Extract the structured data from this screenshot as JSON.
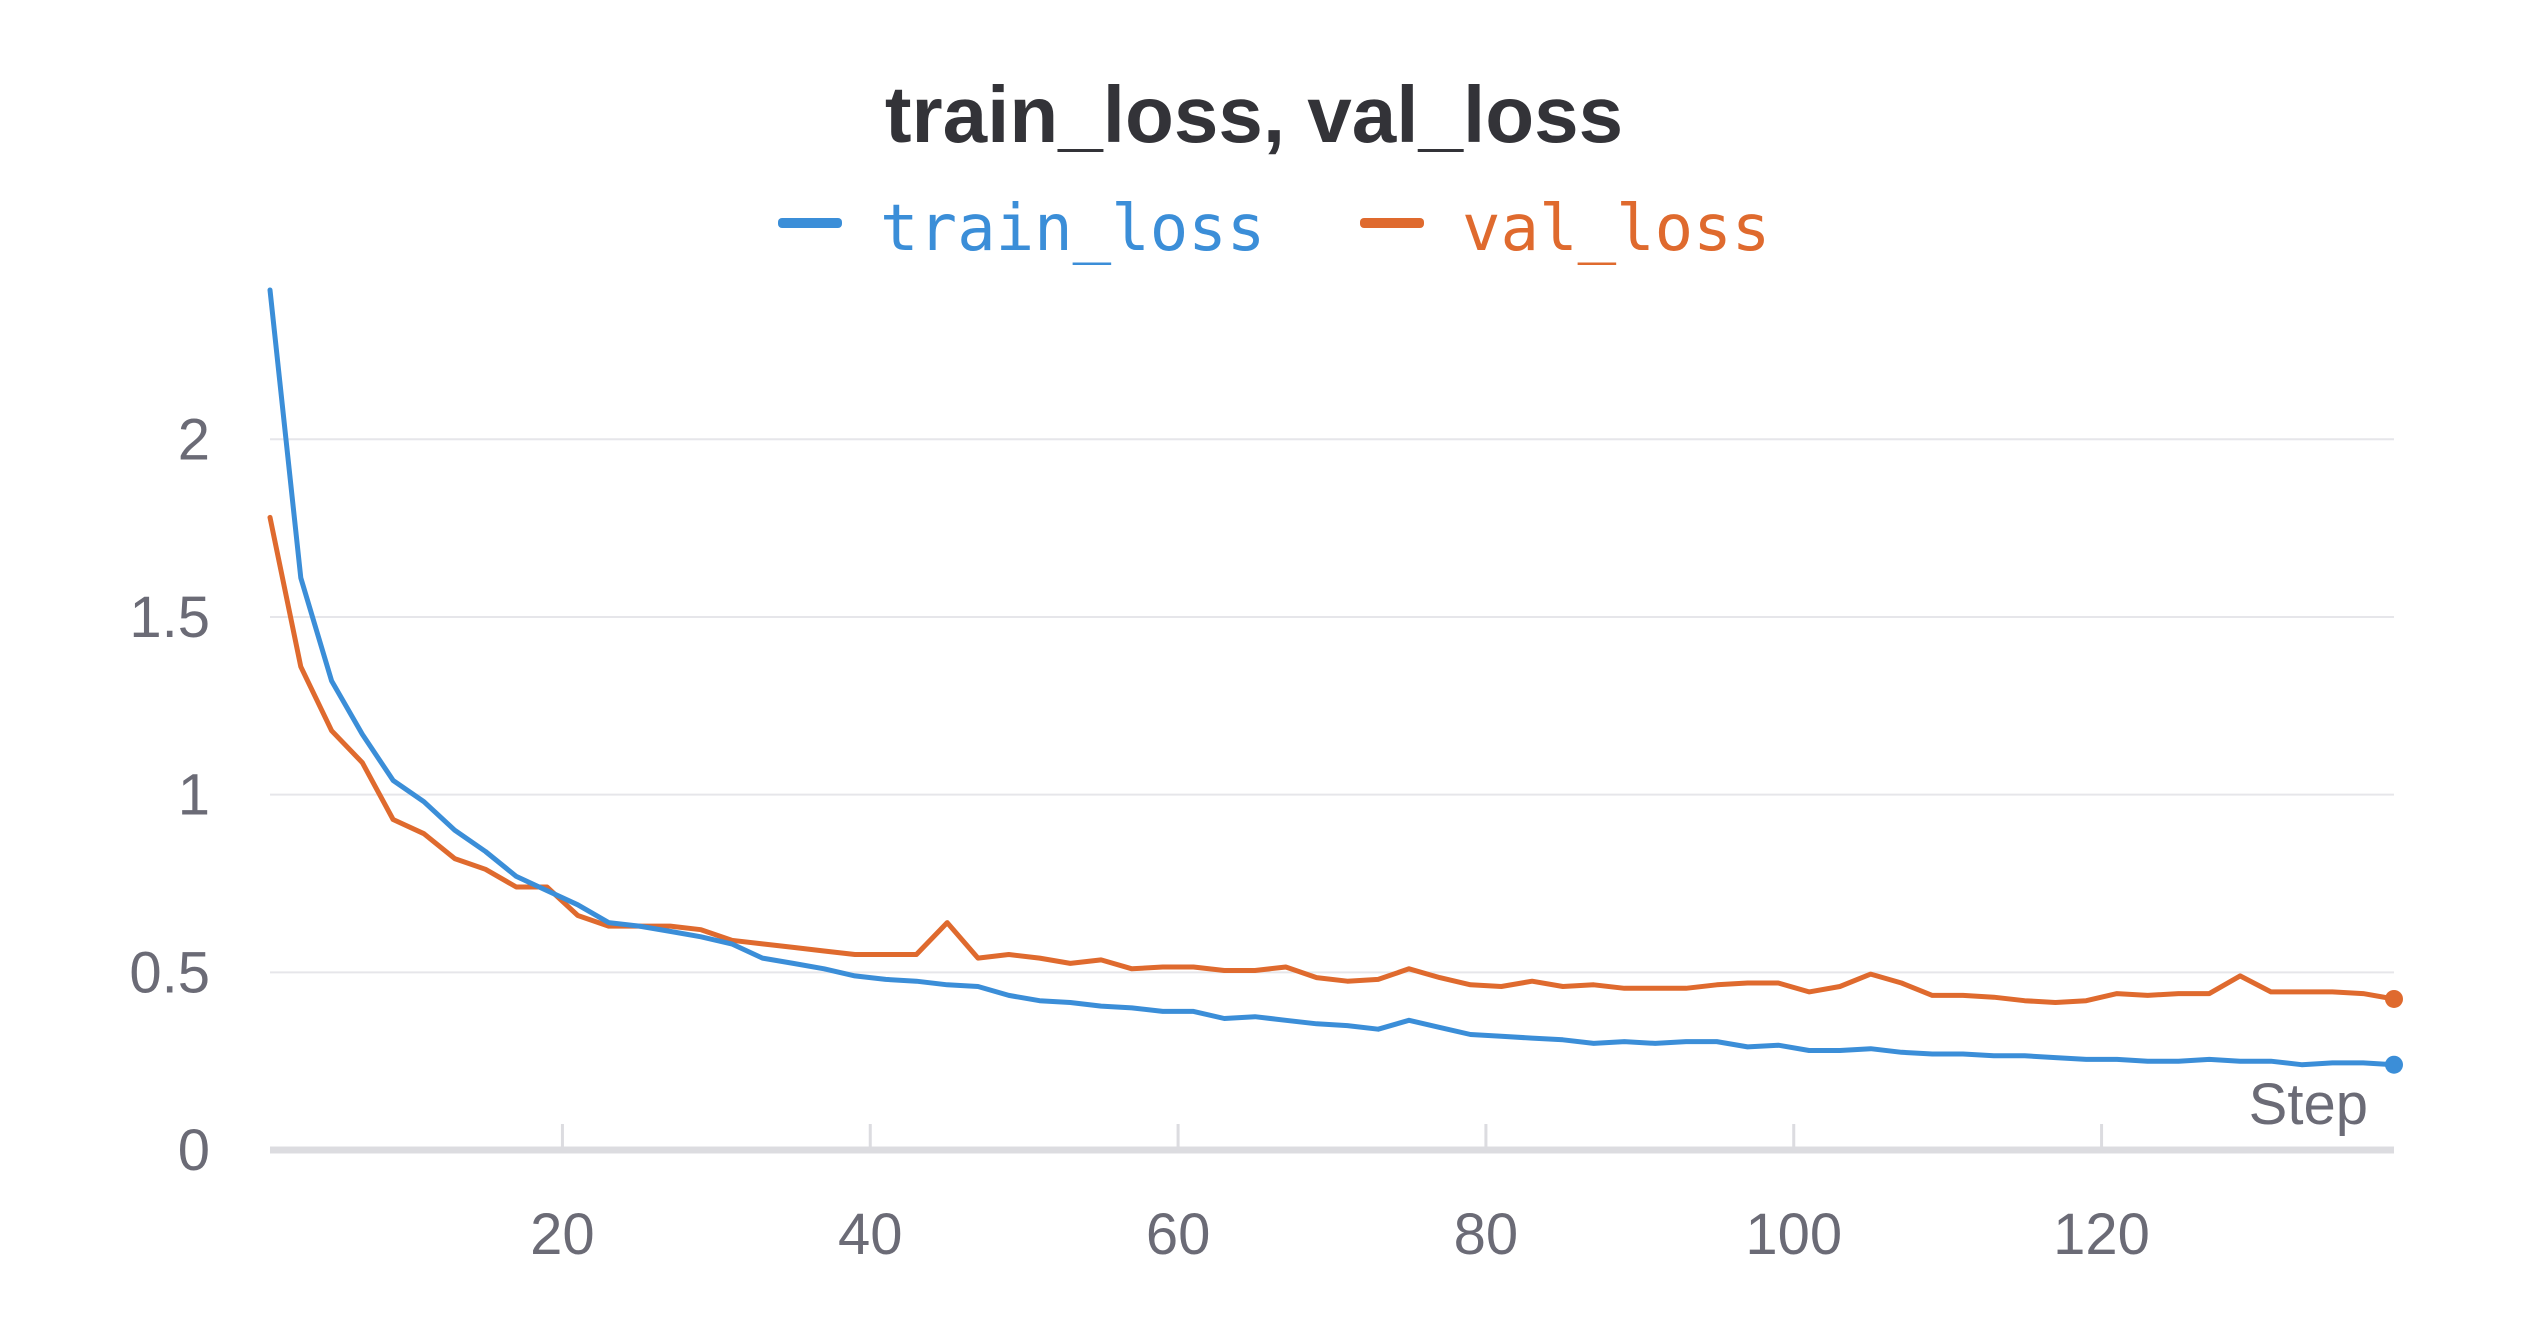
{
  "chart_data": {
    "type": "line",
    "title": "train_loss, val_loss",
    "xlabel": "Step",
    "ylabel": "",
    "xlim": [
      1,
      139
    ],
    "ylim": [
      0,
      2.42
    ],
    "xticks": [
      20,
      40,
      60,
      80,
      100,
      120
    ],
    "yticks": [
      0,
      0.5,
      1,
      1.5,
      2
    ],
    "ytick_labels": [
      "0",
      "0.5",
      "1",
      "1.5",
      "2"
    ],
    "grid": true,
    "legend_position": "top-center",
    "colors": {
      "train_loss": "#3b8ed8",
      "val_loss": "#df6a2e"
    },
    "x": [
      1,
      3,
      5,
      7,
      9,
      11,
      13,
      15,
      17,
      19,
      21,
      23,
      25,
      27,
      29,
      31,
      33,
      35,
      37,
      39,
      41,
      43,
      45,
      47,
      49,
      51,
      53,
      55,
      57,
      59,
      61,
      63,
      65,
      67,
      69,
      71,
      73,
      75,
      77,
      79,
      81,
      83,
      85,
      87,
      89,
      91,
      93,
      95,
      97,
      99,
      101,
      103,
      105,
      107,
      109,
      111,
      113,
      115,
      117,
      119,
      121,
      123,
      125,
      127,
      129,
      131,
      133,
      135,
      137,
      139
    ],
    "series": [
      {
        "name": "train_loss",
        "values": [
          2.42,
          1.61,
          1.32,
          1.17,
          1.04,
          0.98,
          0.9,
          0.84,
          0.77,
          0.73,
          0.69,
          0.64,
          0.63,
          0.615,
          0.6,
          0.58,
          0.54,
          0.525,
          0.51,
          0.49,
          0.48,
          0.475,
          0.465,
          0.46,
          0.435,
          0.42,
          0.415,
          0.405,
          0.4,
          0.39,
          0.39,
          0.37,
          0.375,
          0.365,
          0.355,
          0.35,
          0.34,
          0.365,
          0.345,
          0.325,
          0.32,
          0.315,
          0.31,
          0.3,
          0.305,
          0.3,
          0.305,
          0.305,
          0.29,
          0.295,
          0.28,
          0.28,
          0.285,
          0.275,
          0.27,
          0.27,
          0.265,
          0.265,
          0.26,
          0.255,
          0.255,
          0.25,
          0.25,
          0.255,
          0.25,
          0.25,
          0.24,
          0.245,
          0.245,
          0.24
        ]
      },
      {
        "name": "val_loss",
        "values": [
          1.78,
          1.36,
          1.18,
          1.09,
          0.93,
          0.89,
          0.82,
          0.79,
          0.74,
          0.74,
          0.66,
          0.63,
          0.63,
          0.63,
          0.62,
          0.59,
          0.58,
          0.57,
          0.56,
          0.55,
          0.55,
          0.55,
          0.64,
          0.54,
          0.55,
          0.54,
          0.525,
          0.535,
          0.51,
          0.515,
          0.515,
          0.505,
          0.505,
          0.515,
          0.485,
          0.475,
          0.48,
          0.51,
          0.485,
          0.465,
          0.46,
          0.475,
          0.46,
          0.465,
          0.455,
          0.455,
          0.455,
          0.465,
          0.47,
          0.47,
          0.445,
          0.46,
          0.495,
          0.47,
          0.435,
          0.435,
          0.43,
          0.42,
          0.415,
          0.42,
          0.44,
          0.435,
          0.44,
          0.44,
          0.49,
          0.445,
          0.445,
          0.445,
          0.44,
          0.425
        ]
      }
    ]
  }
}
